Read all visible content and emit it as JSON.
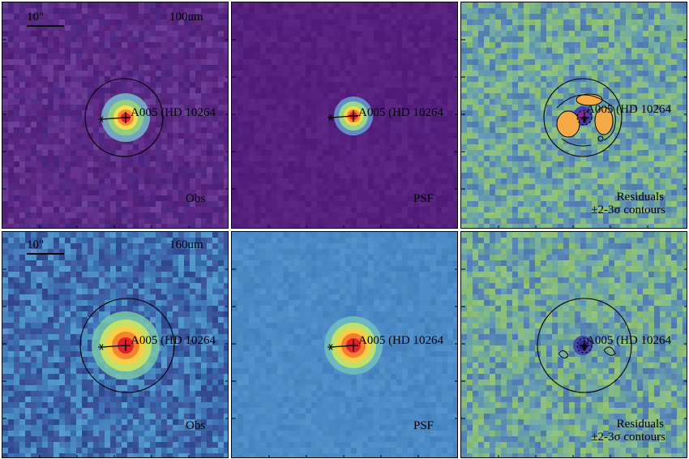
{
  "figure": {
    "rows": [
      {
        "band": "100um",
        "scale_bar": "10\"",
        "panels": [
          {
            "kind": "obs",
            "label": "Obs",
            "source": "A005 (HD 10264",
            "palette": "obs100"
          },
          {
            "kind": "psf",
            "label": "PSF",
            "source": "A005 (HD 10264",
            "palette": "psf100"
          },
          {
            "kind": "res",
            "label": "Residuals",
            "sublabel": "±2-3σ contours",
            "source": "A005 (HD 10264",
            "palette": "res"
          }
        ]
      },
      {
        "band": "160um",
        "scale_bar": "10\"",
        "panels": [
          {
            "kind": "obs",
            "label": "Obs",
            "source": "A005 (HD 10264",
            "palette": "obs160"
          },
          {
            "kind": "psf",
            "label": "PSF",
            "source": "A005 (HD 10264",
            "palette": "psf160"
          },
          {
            "kind": "res",
            "label": "Residuals",
            "sublabel": "±2-3σ contours",
            "source": "A005 (HD 10264",
            "palette": "res"
          }
        ]
      }
    ],
    "colors": {
      "obs100_bg": "#5a2a80",
      "psf100_bg": "#55207e",
      "obs160_bg": "#3d6fb0",
      "psf160_bg": "#4a86c4",
      "res_bg": "#6ea8a0",
      "peak": "#e0202a",
      "ring": "#000000"
    }
  }
}
